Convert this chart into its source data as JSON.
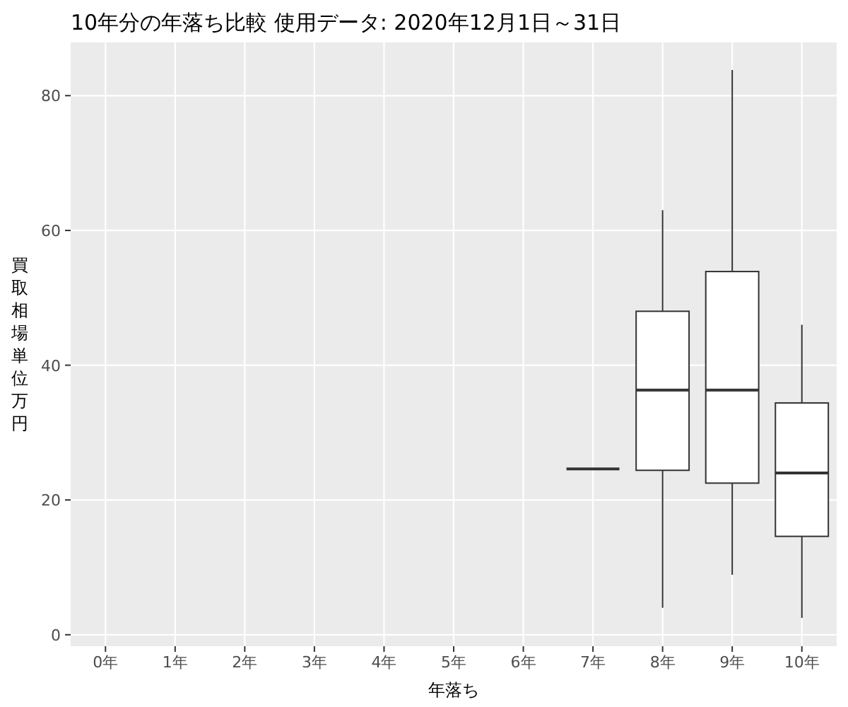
{
  "chart_data": {
    "type": "box",
    "title": "10年分の年落ち比較 使用データ: 2020年12月1日～31日",
    "xlabel": "年落ち",
    "ylabel": "買取相場単位万円",
    "categories": [
      "0年",
      "1年",
      "2年",
      "3年",
      "4年",
      "5年",
      "6年",
      "7年",
      "8年",
      "9年",
      "10年"
    ],
    "boxes": [
      null,
      null,
      null,
      null,
      null,
      null,
      null,
      {
        "low": 24.6,
        "q1": 24.6,
        "median": 24.6,
        "q3": 24.6,
        "high": 24.6
      },
      {
        "low": 4.0,
        "q1": 24.4,
        "median": 36.3,
        "q3": 48.0,
        "high": 63.0
      },
      {
        "low": 8.9,
        "q1": 22.5,
        "median": 36.3,
        "q3": 53.9,
        "high": 83.8
      },
      {
        "low": 2.5,
        "q1": 14.6,
        "median": 24.0,
        "q3": 34.4,
        "high": 46.0
      }
    ],
    "ylim": [
      -1.7,
      87.9
    ],
    "yticks": [
      0,
      20,
      40,
      60,
      80
    ],
    "grid": true
  }
}
